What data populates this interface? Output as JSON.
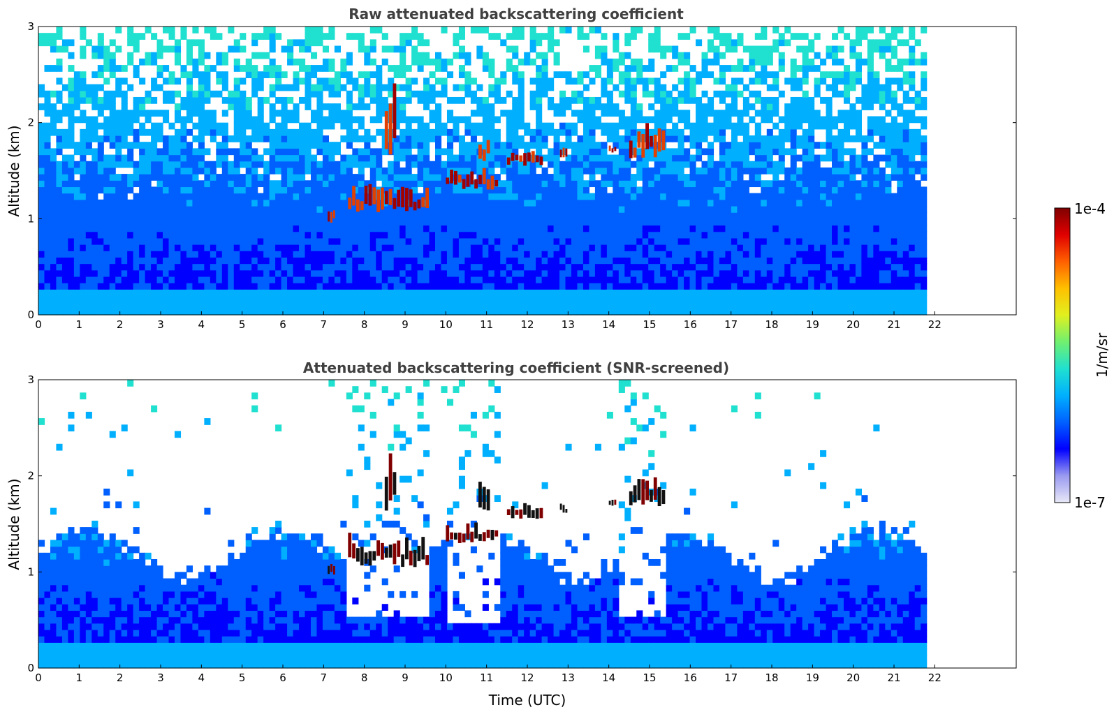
{
  "chart_data": [
    {
      "type": "heatmap",
      "title": "Raw attenuated backscattering coefficient",
      "xlabel": "",
      "ylabel": "Altitude (km)",
      "xlim": [
        0,
        24
      ],
      "ylim": [
        0,
        3
      ],
      "x_ticks": [
        0,
        1,
        2,
        3,
        4,
        5,
        6,
        7,
        8,
        9,
        10,
        11,
        12,
        13,
        14,
        15,
        16,
        17,
        18,
        19,
        20,
        21,
        22
      ],
      "y_ticks": [
        0,
        1,
        2,
        3
      ],
      "data_end_time": 21.8,
      "screened": false,
      "cloud_layers": [
        {
          "start": 7.1,
          "end": 7.3,
          "base_km": 0.95,
          "top_km": 1.1
        },
        {
          "start": 7.6,
          "end": 9.6,
          "base_km": 1.05,
          "top_km": 1.35
        },
        {
          "start": 8.5,
          "end": 8.8,
          "base_km": 1.6,
          "top_km": 2.25
        },
        {
          "start": 10.0,
          "end": 11.3,
          "base_km": 1.3,
          "top_km": 1.5
        },
        {
          "start": 10.8,
          "end": 11.1,
          "base_km": 1.6,
          "top_km": 1.9
        },
        {
          "start": 11.5,
          "end": 12.4,
          "base_km": 1.55,
          "top_km": 1.7
        },
        {
          "start": 12.8,
          "end": 13.0,
          "base_km": 1.6,
          "top_km": 1.72
        },
        {
          "start": 14.0,
          "end": 14.2,
          "base_km": 1.68,
          "top_km": 1.75
        },
        {
          "start": 14.5,
          "end": 15.4,
          "base_km": 1.62,
          "top_km": 1.95
        }
      ]
    },
    {
      "type": "heatmap",
      "title": "Attenuated backscattering coefficient (SNR-screened)",
      "xlabel": "Time (UTC)",
      "ylabel": "Altitude (km)",
      "xlim": [
        0,
        24
      ],
      "ylim": [
        0,
        3
      ],
      "x_ticks": [
        0,
        1,
        2,
        3,
        4,
        5,
        6,
        7,
        8,
        9,
        10,
        11,
        12,
        13,
        14,
        15,
        16,
        17,
        18,
        19,
        20,
        21,
        22
      ],
      "y_ticks": [
        0,
        1,
        2,
        3
      ],
      "data_end_time": 21.8,
      "screened": true,
      "cloud_layers": [
        {
          "start": 7.1,
          "end": 7.3,
          "base_km": 0.95,
          "top_km": 1.1
        },
        {
          "start": 7.6,
          "end": 9.6,
          "base_km": 1.05,
          "top_km": 1.35
        },
        {
          "start": 8.5,
          "end": 8.8,
          "base_km": 1.6,
          "top_km": 2.25
        },
        {
          "start": 10.0,
          "end": 11.3,
          "base_km": 1.3,
          "top_km": 1.5
        },
        {
          "start": 10.8,
          "end": 11.1,
          "base_km": 1.6,
          "top_km": 1.9
        },
        {
          "start": 11.5,
          "end": 12.4,
          "base_km": 1.55,
          "top_km": 1.7
        },
        {
          "start": 12.8,
          "end": 13.0,
          "base_km": 1.6,
          "top_km": 1.72
        },
        {
          "start": 14.0,
          "end": 14.2,
          "base_km": 1.68,
          "top_km": 1.75
        },
        {
          "start": 14.5,
          "end": 15.4,
          "base_km": 1.62,
          "top_km": 1.95
        }
      ]
    }
  ],
  "colorbar": {
    "label": "1/m/sr",
    "max_label": "1e-4",
    "min_label": "1e-7",
    "min_value": 1e-07,
    "max_value": 0.0001,
    "scale": "log",
    "colormap": [
      "#e8e8f8",
      "#9a9af0",
      "#0000ff",
      "#0060ff",
      "#00b0ff",
      "#20e0d0",
      "#70f070",
      "#e0f020",
      "#ffc000",
      "#ff6000",
      "#e00000",
      "#800000"
    ]
  }
}
